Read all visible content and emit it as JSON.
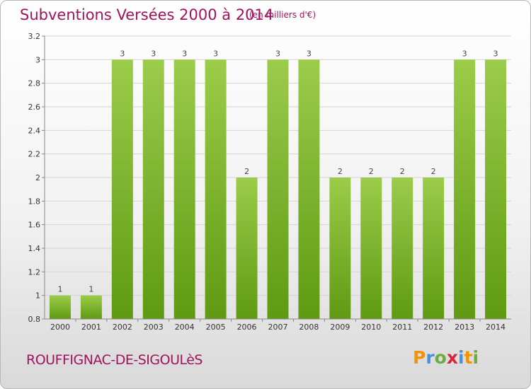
{
  "header": {
    "title": "Subventions Versées 2000 à 2014",
    "unit": "(en milliers d'€)"
  },
  "footer": {
    "town": "ROUFFIGNAC-DE-SIGOULèS",
    "brand": [
      "P",
      "r",
      "o",
      "x",
      "i",
      "t",
      "i"
    ],
    "brand_colors": [
      "#f29400",
      "#4a90d9",
      "#6cae3e",
      "#d7263d",
      "#4a90d9",
      "#f29400",
      "#6cae3e"
    ]
  },
  "chart_data": {
    "type": "bar",
    "categories": [
      "2000",
      "2001",
      "2002",
      "2003",
      "2004",
      "2005",
      "2006",
      "2007",
      "2008",
      "2009",
      "2010",
      "2011",
      "2012",
      "2013",
      "2014"
    ],
    "values": [
      1,
      1,
      3,
      3,
      3,
      3,
      2,
      3,
      3,
      2,
      2,
      2,
      2,
      3,
      3
    ],
    "data_labels": [
      "1",
      "1",
      "3",
      "3",
      "3",
      "3",
      "2",
      "3",
      "3",
      "2",
      "2",
      "2",
      "2",
      "3",
      "3"
    ],
    "y_ticks": [
      {
        "value": 0.8,
        "label": "0.8"
      },
      {
        "value": 1.0,
        "label": "1"
      },
      {
        "value": 1.2,
        "label": "1.2"
      },
      {
        "value": 1.4,
        "label": "1.4"
      },
      {
        "value": 1.6,
        "label": "1.6"
      },
      {
        "value": 1.8,
        "label": "1.8"
      },
      {
        "value": 2.0,
        "label": "2"
      },
      {
        "value": 2.2,
        "label": "2.2"
      },
      {
        "value": 2.4,
        "label": "2.4"
      },
      {
        "value": 2.6,
        "label": "2.6"
      },
      {
        "value": 2.8,
        "label": "2.8"
      },
      {
        "value": 3.0,
        "label": "3"
      },
      {
        "value": 3.2,
        "label": "3.2"
      }
    ],
    "ylim": [
      0.8,
      3.2
    ],
    "grid": true,
    "bar_color_top": "#9bcc4a",
    "bar_color_bottom": "#5f9a12",
    "xlabel": "",
    "ylabel": ""
  }
}
